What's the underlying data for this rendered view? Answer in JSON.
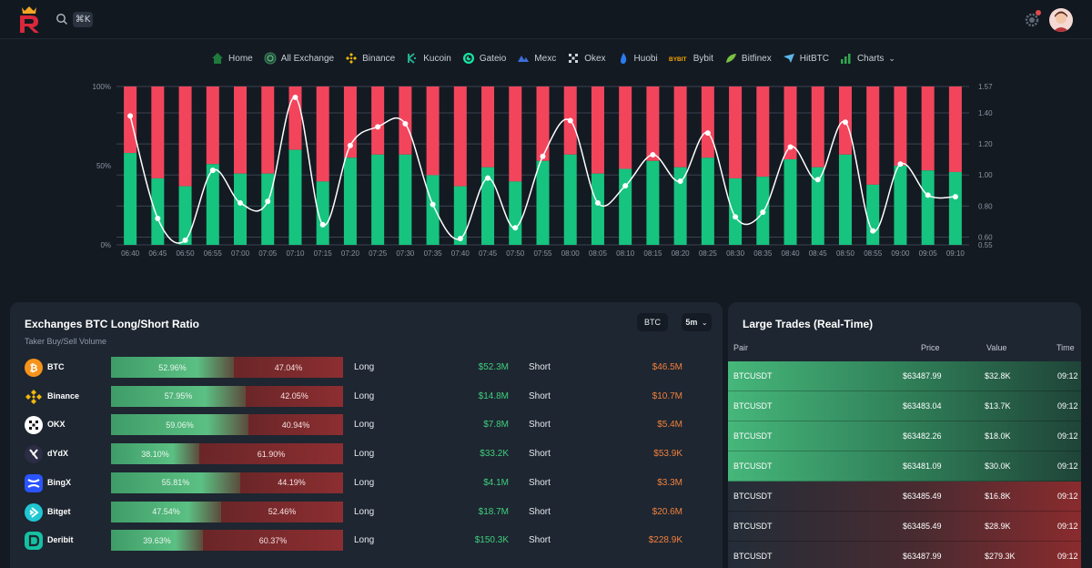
{
  "topbar": {
    "search_shortcut": "⌘K"
  },
  "nav": {
    "items": [
      {
        "label": "Home",
        "icon": "home-icon"
      },
      {
        "label": "All Exchange",
        "icon": "globe-icon"
      },
      {
        "label": "Binance",
        "icon": "binance-icon"
      },
      {
        "label": "Kucoin",
        "icon": "kucoin-icon"
      },
      {
        "label": "Gateio",
        "icon": "gateio-icon"
      },
      {
        "label": "Mexc",
        "icon": "mexc-icon"
      },
      {
        "label": "Okex",
        "icon": "okex-icon"
      },
      {
        "label": "Huobi",
        "icon": "huobi-icon"
      },
      {
        "label": "Bybit",
        "icon": "bybit-icon"
      },
      {
        "label": "Bitfinex",
        "icon": "bitfinex-icon"
      },
      {
        "label": "HitBTC",
        "icon": "hitbtc-icon"
      },
      {
        "label": "Charts",
        "icon": "charts-icon",
        "dropdown": true
      }
    ]
  },
  "chart_data": {
    "type": "bar",
    "categories": [
      "06:40",
      "06:45",
      "06:50",
      "06:55",
      "07:00",
      "07:05",
      "07:10",
      "07:15",
      "07:20",
      "07:25",
      "07:30",
      "07:35",
      "07:40",
      "07:45",
      "07:50",
      "07:55",
      "08:00",
      "08:05",
      "08:10",
      "08:15",
      "08:20",
      "08:25",
      "08:30",
      "08:35",
      "08:40",
      "08:45",
      "08:50",
      "08:55",
      "09:00",
      "09:05",
      "09:10"
    ],
    "series": [
      {
        "kind": "long_pct",
        "values": [
          58,
          42,
          37,
          51,
          45,
          45,
          60,
          40,
          55,
          57,
          57,
          44,
          37,
          49,
          40,
          53,
          57,
          45,
          48,
          53,
          49,
          55,
          42,
          43,
          54,
          49,
          57,
          38,
          50,
          47,
          46
        ]
      },
      {
        "kind": "ratio_line",
        "values": [
          1.38,
          0.72,
          0.58,
          1.03,
          0.82,
          0.83,
          1.5,
          0.68,
          1.19,
          1.31,
          1.33,
          0.81,
          0.59,
          0.98,
          0.66,
          1.12,
          1.35,
          0.82,
          0.93,
          1.13,
          0.96,
          1.27,
          0.73,
          0.76,
          1.18,
          0.97,
          1.34,
          0.64,
          1.07,
          0.87,
          0.86
        ]
      }
    ],
    "left_axis": {
      "ticks": [
        "100%",
        "50%",
        "0%"
      ],
      "ylim": [
        0,
        100
      ]
    },
    "right_axis": {
      "ticks": [
        "1.57",
        "1.40",
        "1.20",
        "1.00",
        "0.80",
        "0.60",
        "0.55"
      ],
      "ylim": [
        0.55,
        1.57
      ]
    },
    "colors": {
      "long": "#16c47f",
      "short": "#f2455c",
      "line": "#ffffff"
    },
    "grid": true
  },
  "ratio_panel": {
    "title": "Exchanges BTC Long/Short Ratio",
    "subtitle": "Taker Buy/Sell Volume",
    "coin": "BTC",
    "timeframe": "5m",
    "long_label": "Long",
    "short_label": "Short",
    "rows": [
      {
        "name": "BTC",
        "logo": "bitcoin-icon",
        "color": "#f7931a",
        "long_pct": "52.96%",
        "short_pct": "47.04%",
        "long_frac": 0.5296,
        "long_val": "$52.3M",
        "short_val": "$46.5M"
      },
      {
        "name": "Binance",
        "logo": "binance-icon",
        "color": "#f0b90b",
        "long_pct": "57.95%",
        "short_pct": "42.05%",
        "long_frac": 0.5795,
        "long_val": "$14.8M",
        "short_val": "$10.7M"
      },
      {
        "name": "OKX",
        "logo": "okx-icon",
        "color": "#ffffff",
        "long_pct": "59.06%",
        "short_pct": "40.94%",
        "long_frac": 0.5906,
        "long_val": "$7.8M",
        "short_val": "$5.4M"
      },
      {
        "name": "dYdX",
        "logo": "dydx-icon",
        "color": "#2c2c44",
        "long_pct": "38.10%",
        "short_pct": "61.90%",
        "long_frac": 0.381,
        "long_val": "$33.2K",
        "short_val": "$53.9K"
      },
      {
        "name": "BingX",
        "logo": "bingx-icon",
        "color": "#2a54ff",
        "long_pct": "55.81%",
        "short_pct": "44.19%",
        "long_frac": 0.5581,
        "long_val": "$4.1M",
        "short_val": "$3.3M"
      },
      {
        "name": "Bitget",
        "logo": "bitget-icon",
        "color": "#1fc7d4",
        "long_pct": "47.54%",
        "short_pct": "52.46%",
        "long_frac": 0.4754,
        "long_val": "$18.7M",
        "short_val": "$20.6M"
      },
      {
        "name": "Deribit",
        "logo": "deribit-icon",
        "color": "#13c2a3",
        "long_pct": "39.63%",
        "short_pct": "60.37%",
        "long_frac": 0.3963,
        "long_val": "$150.3K",
        "short_val": "$228.9K"
      }
    ]
  },
  "trades_panel": {
    "title": "Large Trades (Real-Time)",
    "columns": {
      "pair": "Pair",
      "price": "Price",
      "value": "Value",
      "time": "Time"
    },
    "rows": [
      {
        "side": "buy",
        "pair": "BTCUSDT",
        "price": "$63487.99",
        "value": "$32.8K",
        "time": "09:12"
      },
      {
        "side": "buy",
        "pair": "BTCUSDT",
        "price": "$63483.04",
        "value": "$13.7K",
        "time": "09:12"
      },
      {
        "side": "buy",
        "pair": "BTCUSDT",
        "price": "$63482.26",
        "value": "$18.0K",
        "time": "09:12"
      },
      {
        "side": "buy",
        "pair": "BTCUSDT",
        "price": "$63481.09",
        "value": "$30.0K",
        "time": "09:12"
      },
      {
        "side": "sell",
        "pair": "BTCUSDT",
        "price": "$63485.49",
        "value": "$16.8K",
        "time": "09:12"
      },
      {
        "side": "sell",
        "pair": "BTCUSDT",
        "price": "$63485.49",
        "value": "$28.9K",
        "time": "09:12"
      },
      {
        "side": "sell",
        "pair": "BTCUSDT",
        "price": "$63487.99",
        "value": "$279.3K",
        "time": "09:12"
      }
    ]
  }
}
